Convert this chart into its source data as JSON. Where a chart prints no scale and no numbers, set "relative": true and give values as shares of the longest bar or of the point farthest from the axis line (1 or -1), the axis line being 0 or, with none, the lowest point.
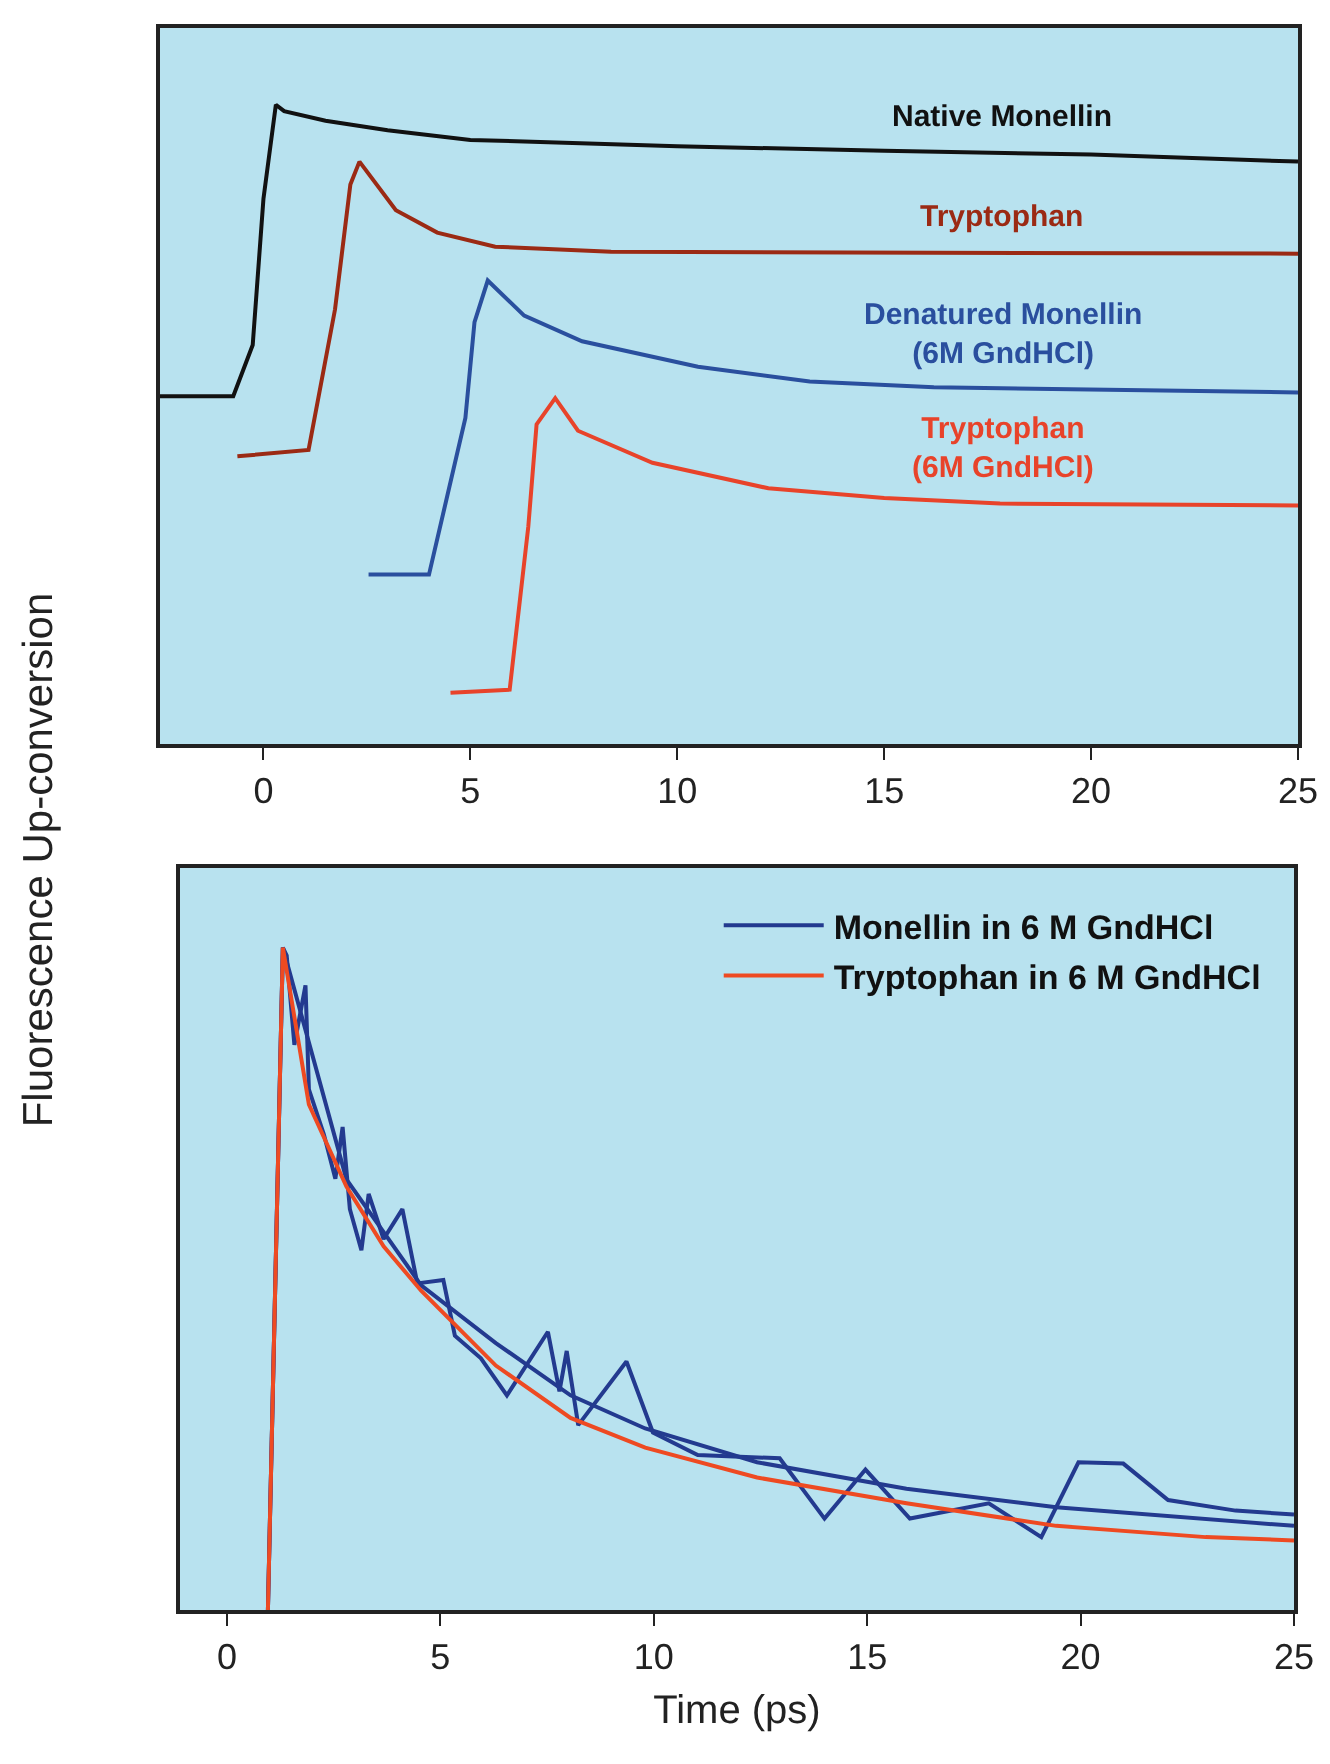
{
  "chart_data": [
    {
      "type": "line",
      "ylabel": "Fluorescence Up-conversion",
      "relative": true,
      "xlim": [
        -2.5,
        25
      ],
      "xticks": [
        0,
        5,
        10,
        15,
        20,
        25
      ],
      "grid": false,
      "legend": false,
      "series": [
        {
          "name": "Native Monellin",
          "color": "#111111",
          "x": [
            -2.5,
            -0.73,
            -0.26,
            0,
            0.3,
            0.5,
            1.5,
            3,
            5,
            10,
            15,
            20,
            25
          ],
          "values": [
            0.544,
            0.544,
            0.624,
            0.853,
            1.0,
            0.99,
            0.975,
            0.96,
            0.945,
            0.935,
            0.928,
            0.922,
            0.911
          ]
        },
        {
          "name": "Tryptophan",
          "color": "#9b2a14",
          "x": [
            -0.63,
            1.09,
            1.73,
            2.1,
            2.32,
            3.2,
            4.2,
            5.6,
            8.4,
            25
          ],
          "values": [
            0.45,
            0.46,
            0.68,
            0.875,
            0.911,
            0.835,
            0.8,
            0.778,
            0.77,
            0.767
          ]
        },
        {
          "name": "Denatured Monellin\n(6M GndHCl)",
          "color": "#2a4f9e",
          "x": [
            2.54,
            4.0,
            4.88,
            5.1,
            5.42,
            6.3,
            7.7,
            10.5,
            13.2,
            16.2,
            25
          ],
          "values": [
            0.265,
            0.265,
            0.51,
            0.66,
            0.725,
            0.67,
            0.63,
            0.59,
            0.567,
            0.558,
            0.55
          ]
        },
        {
          "name": "Tryptophan\n(6M GndHCl)",
          "color": "#e8432a",
          "x": [
            4.52,
            5.95,
            6.4,
            6.6,
            7.05,
            7.6,
            9.4,
            12.2,
            15.0,
            17.8,
            25
          ],
          "values": [
            0.08,
            0.085,
            0.34,
            0.5,
            0.541,
            0.49,
            0.44,
            0.4,
            0.385,
            0.376,
            0.373
          ]
        }
      ]
    },
    {
      "type": "line",
      "xlabel": "Time (ps)",
      "relative": true,
      "xlim": [
        -1.1,
        25
      ],
      "xticks": [
        0,
        5,
        10,
        15,
        20,
        25
      ],
      "grid": false,
      "legend": "top right",
      "series": [
        {
          "name": "Monellin in 6 M GndHCl",
          "color": "#233a8f",
          "x": [
            0.96,
            1.31,
            1.4,
            1.58,
            1.84,
            1.92,
            2.27,
            2.54,
            2.71,
            2.88,
            3.15,
            3.32,
            3.67,
            4.11,
            4.46,
            5.07,
            5.34,
            5.95,
            6.56,
            7.52,
            7.79,
            7.96,
            8.23,
            9.36,
            9.98,
            11.03,
            12.95,
            14.0,
            14.96,
            16.0,
            17.85,
            19.08,
            19.95,
            21.0,
            22.05,
            23.63,
            25
          ],
          "values": [
            0,
            1.0,
            0.988,
            0.853,
            0.943,
            0.786,
            0.718,
            0.651,
            0.729,
            0.605,
            0.543,
            0.628,
            0.56,
            0.605,
            0.493,
            0.498,
            0.414,
            0.38,
            0.324,
            0.42,
            0.33,
            0.391,
            0.279,
            0.375,
            0.268,
            0.234,
            0.229,
            0.138,
            0.212,
            0.138,
            0.161,
            0.11,
            0.223,
            0.221,
            0.166,
            0.15,
            0.144
          ]
        },
        {
          "color": "#233a8f",
          "x": [
            0.96,
            1.31,
            2.8,
            4.55,
            6.3,
            8.05,
            9.8,
            12.42,
            15.92,
            19.43,
            25
          ],
          "values": [
            0,
            1.0,
            0.65,
            0.49,
            0.403,
            0.324,
            0.274,
            0.223,
            0.183,
            0.155,
            0.127
          ]
        },
        {
          "name": "Tryptophan in 6 M GndHCl",
          "color": "#ee4a22",
          "x": [
            0.96,
            1.31,
            1.92,
            2.8,
            3.67,
            4.55,
            5.43,
            6.3,
            8.05,
            9.8,
            12.42,
            15.92,
            19.43,
            22.93,
            25
          ],
          "values": [
            0,
            1.0,
            0.763,
            0.639,
            0.549,
            0.482,
            0.425,
            0.369,
            0.29,
            0.245,
            0.2,
            0.161,
            0.127,
            0.11,
            0.105
          ]
        }
      ]
    }
  ]
}
